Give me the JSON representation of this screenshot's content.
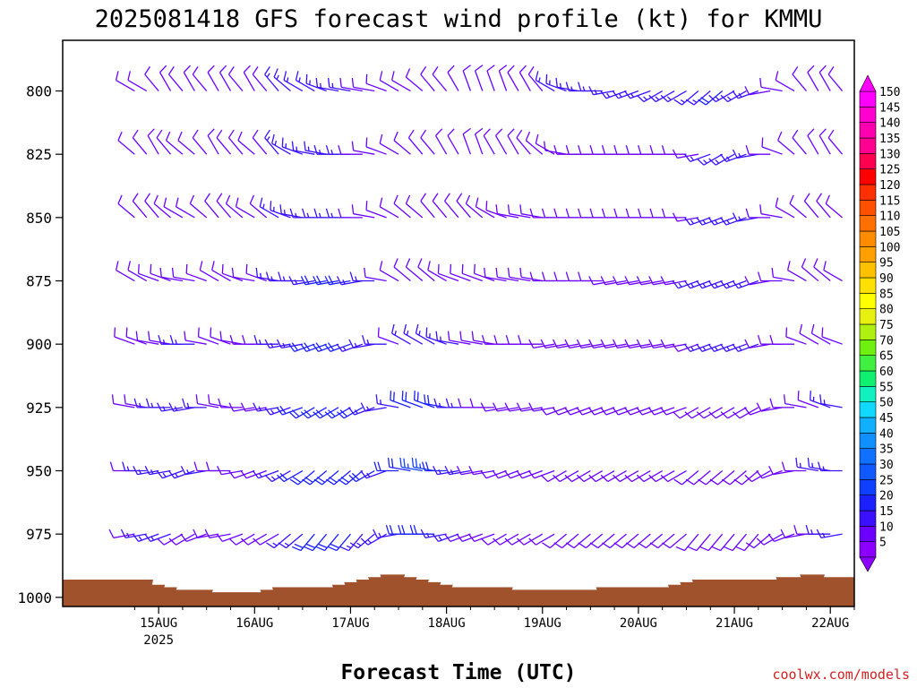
{
  "chart_data": {
    "type": "wind-barb-profile",
    "title": "2025081418 GFS forecast wind profile (kt) for KMMU",
    "xlabel": "Forecast Time (UTC)",
    "credit": "coolwx.com/models",
    "y_ticks": [
      800,
      825,
      850,
      875,
      900,
      925,
      950,
      975,
      1000
    ],
    "ylim": [
      1000,
      780
    ],
    "x_ticks": [
      {
        "label": "15AUG",
        "sub": "2025"
      },
      {
        "label": "16AUG",
        "sub": ""
      },
      {
        "label": "17AUG",
        "sub": ""
      },
      {
        "label": "18AUG",
        "sub": ""
      },
      {
        "label": "19AUG",
        "sub": ""
      },
      {
        "label": "20AUG",
        "sub": ""
      },
      {
        "label": "21AUG",
        "sub": ""
      },
      {
        "label": "22AUG",
        "sub": ""
      }
    ],
    "forecast_hours": [
      0,
      3,
      6,
      9,
      12,
      15,
      18,
      21,
      24,
      27,
      30,
      33,
      36,
      39,
      42,
      45,
      48,
      51,
      54,
      57,
      60,
      63,
      66,
      69,
      72,
      75,
      78,
      81,
      84,
      87,
      90,
      93,
      96,
      99,
      102,
      105,
      108,
      111,
      114,
      117,
      120,
      123,
      126,
      129,
      132,
      135,
      138,
      141,
      144,
      147,
      150,
      153,
      156,
      159,
      162,
      165,
      168,
      171,
      174,
      177,
      180
    ],
    "colorbar": {
      "values": [
        5,
        10,
        15,
        20,
        25,
        30,
        35,
        40,
        45,
        50,
        55,
        60,
        65,
        70,
        75,
        80,
        85,
        90,
        95,
        100,
        105,
        110,
        115,
        120,
        125,
        130,
        135,
        140,
        145,
        150
      ],
      "colors": [
        "#8b00ff",
        "#6b00ff",
        "#3a10ff",
        "#1a20ff",
        "#1040ff",
        "#1058ff",
        "#1070ff",
        "#1090ff",
        "#10b0ff",
        "#10d8ff",
        "#10f0c0",
        "#10f070",
        "#40f040",
        "#70f010",
        "#b0f010",
        "#e8f010",
        "#ffff00",
        "#ffe000",
        "#ffc000",
        "#ffa000",
        "#ff8c00",
        "#ff7000",
        "#ff5000",
        "#ff3000",
        "#ff0000",
        "#ff0050",
        "#ff0090",
        "#ff00b0",
        "#ff00d0",
        "#ff00ff"
      ]
    },
    "surface_pressure": [
      993,
      993,
      995,
      996,
      997,
      997,
      997,
      998,
      998,
      998,
      998,
      997,
      996,
      996,
      996,
      996,
      996,
      995,
      994,
      993,
      992,
      991,
      991,
      992,
      993,
      994,
      995,
      996,
      996,
      996,
      996,
      996,
      997,
      997,
      997,
      997,
      997,
      997,
      997,
      996,
      996,
      996,
      996,
      996,
      996,
      995,
      994,
      993,
      993,
      993,
      993,
      993,
      993,
      993,
      992,
      992,
      991,
      991,
      992,
      992,
      992
    ],
    "series": [
      {
        "level": 800,
        "dir": [
          300,
          300,
          320,
          330,
          320,
          330,
          320,
          330,
          330,
          320,
          330,
          320,
          320,
          310,
          300,
          300,
          290,
          280,
          280,
          280,
          280,
          290,
          300,
          300,
          310,
          320,
          320,
          330,
          340,
          340,
          340,
          340,
          330,
          330,
          320,
          300,
          290,
          280,
          270,
          270,
          260,
          250,
          250,
          250,
          240,
          240,
          240,
          230,
          230,
          230,
          240,
          240,
          250,
          260,
          280,
          300,
          320,
          330,
          330,
          320,
          310
        ],
        "spd": [
          10,
          10,
          10,
          10,
          10,
          10,
          10,
          10,
          10,
          10,
          10,
          10,
          15,
          15,
          15,
          15,
          15,
          15,
          15,
          10,
          10,
          10,
          10,
          10,
          10,
          10,
          10,
          10,
          10,
          10,
          10,
          10,
          10,
          10,
          10,
          15,
          15,
          15,
          15,
          15,
          15,
          15,
          15,
          15,
          15,
          15,
          15,
          15,
          15,
          20,
          15,
          15,
          15,
          10,
          10,
          10,
          10,
          10,
          10,
          10,
          10
        ]
      },
      {
        "level": 825,
        "dir": [
          310,
          320,
          330,
          320,
          310,
          310,
          320,
          330,
          320,
          320,
          310,
          320,
          320,
          300,
          290,
          280,
          280,
          270,
          270,
          270,
          280,
          290,
          300,
          310,
          320,
          320,
          330,
          330,
          340,
          340,
          330,
          330,
          330,
          320,
          310,
          300,
          280,
          270,
          270,
          270,
          270,
          270,
          270,
          270,
          270,
          270,
          270,
          260,
          250,
          240,
          240,
          250,
          260,
          270,
          290,
          310,
          320,
          330,
          330,
          320,
          310
        ],
        "spd": [
          10,
          10,
          10,
          10,
          10,
          10,
          10,
          10,
          10,
          10,
          10,
          10,
          15,
          15,
          15,
          15,
          15,
          15,
          15,
          10,
          10,
          10,
          10,
          10,
          10,
          10,
          10,
          10,
          10,
          10,
          10,
          10,
          10,
          10,
          10,
          10,
          10,
          10,
          10,
          10,
          10,
          10,
          10,
          10,
          10,
          10,
          10,
          10,
          15,
          15,
          15,
          15,
          15,
          10,
          10,
          10,
          10,
          10,
          10,
          10,
          10
        ]
      },
      {
        "level": 850,
        "dir": [
          310,
          320,
          320,
          310,
          300,
          300,
          310,
          320,
          320,
          310,
          300,
          310,
          300,
          290,
          280,
          270,
          270,
          270,
          270,
          270,
          280,
          290,
          300,
          310,
          310,
          320,
          320,
          320,
          320,
          310,
          300,
          290,
          280,
          280,
          280,
          270,
          270,
          270,
          270,
          270,
          270,
          270,
          270,
          270,
          270,
          270,
          270,
          260,
          250,
          250,
          250,
          250,
          260,
          270,
          280,
          300,
          310,
          320,
          320,
          310,
          300
        ],
        "spd": [
          10,
          10,
          10,
          10,
          10,
          10,
          10,
          10,
          10,
          10,
          10,
          10,
          15,
          15,
          15,
          15,
          15,
          15,
          15,
          10,
          10,
          10,
          10,
          10,
          10,
          10,
          10,
          10,
          10,
          10,
          10,
          10,
          10,
          10,
          10,
          10,
          10,
          10,
          10,
          10,
          10,
          10,
          10,
          10,
          10,
          10,
          10,
          10,
          15,
          15,
          15,
          15,
          15,
          10,
          10,
          10,
          10,
          10,
          10,
          10,
          10
        ]
      },
      {
        "level": 875,
        "dir": [
          300,
          300,
          290,
          290,
          280,
          280,
          290,
          300,
          300,
          290,
          280,
          290,
          280,
          270,
          270,
          260,
          260,
          260,
          260,
          260,
          270,
          280,
          300,
          310,
          310,
          310,
          300,
          290,
          290,
          290,
          290,
          280,
          280,
          280,
          280,
          270,
          270,
          270,
          270,
          270,
          260,
          260,
          260,
          260,
          260,
          260,
          260,
          250,
          250,
          250,
          250,
          250,
          250,
          260,
          270,
          280,
          300,
          310,
          310,
          300,
          290
        ],
        "spd": [
          10,
          10,
          10,
          10,
          10,
          10,
          10,
          10,
          10,
          10,
          10,
          10,
          15,
          15,
          15,
          15,
          20,
          20,
          20,
          15,
          15,
          10,
          10,
          10,
          10,
          10,
          10,
          10,
          10,
          10,
          10,
          10,
          10,
          10,
          10,
          10,
          10,
          10,
          10,
          10,
          10,
          10,
          10,
          10,
          10,
          10,
          10,
          15,
          15,
          15,
          15,
          15,
          15,
          10,
          10,
          10,
          10,
          10,
          10,
          10,
          10
        ]
      },
      {
        "level": 900,
        "dir": [
          290,
          290,
          280,
          280,
          270,
          270,
          280,
          290,
          290,
          280,
          270,
          270,
          270,
          260,
          260,
          250,
          250,
          250,
          250,
          250,
          260,
          270,
          290,
          300,
          300,
          300,
          290,
          280,
          280,
          280,
          280,
          270,
          270,
          270,
          270,
          260,
          260,
          260,
          260,
          260,
          260,
          260,
          260,
          260,
          260,
          260,
          260,
          250,
          250,
          250,
          250,
          250,
          250,
          260,
          270,
          270,
          290,
          300,
          300,
          290,
          280
        ],
        "spd": [
          10,
          10,
          10,
          10,
          15,
          15,
          10,
          10,
          10,
          10,
          10,
          10,
          15,
          15,
          15,
          20,
          20,
          20,
          20,
          15,
          15,
          15,
          10,
          15,
          15,
          15,
          15,
          15,
          10,
          10,
          10,
          10,
          10,
          10,
          10,
          10,
          10,
          10,
          10,
          10,
          10,
          10,
          10,
          10,
          10,
          10,
          10,
          10,
          15,
          15,
          15,
          15,
          15,
          10,
          10,
          10,
          10,
          10,
          10,
          10,
          10
        ]
      },
      {
        "level": 925,
        "dir": [
          280,
          280,
          270,
          270,
          260,
          260,
          270,
          280,
          280,
          270,
          260,
          260,
          260,
          250,
          250,
          240,
          240,
          240,
          240,
          240,
          250,
          260,
          280,
          290,
          290,
          290,
          280,
          270,
          270,
          270,
          270,
          260,
          260,
          260,
          260,
          260,
          250,
          250,
          250,
          250,
          250,
          250,
          250,
          250,
          250,
          250,
          250,
          240,
          240,
          240,
          240,
          240,
          240,
          250,
          260,
          270,
          280,
          290,
          290,
          280,
          270
        ],
        "spd": [
          10,
          10,
          15,
          15,
          15,
          15,
          15,
          10,
          10,
          10,
          10,
          10,
          15,
          15,
          20,
          20,
          20,
          20,
          20,
          20,
          15,
          15,
          15,
          20,
          20,
          20,
          20,
          15,
          15,
          10,
          10,
          10,
          10,
          10,
          10,
          10,
          10,
          10,
          10,
          10,
          10,
          10,
          10,
          10,
          10,
          10,
          10,
          10,
          10,
          10,
          10,
          10,
          10,
          10,
          10,
          10,
          10,
          10,
          15,
          15,
          10
        ]
      },
      {
        "level": 950,
        "dir": [
          270,
          270,
          260,
          260,
          250,
          250,
          260,
          270,
          270,
          260,
          250,
          250,
          250,
          240,
          240,
          230,
          230,
          230,
          230,
          230,
          240,
          250,
          270,
          280,
          280,
          280,
          270,
          260,
          260,
          260,
          260,
          250,
          250,
          250,
          250,
          250,
          240,
          240,
          240,
          240,
          240,
          240,
          240,
          240,
          240,
          240,
          240,
          230,
          230,
          230,
          230,
          230,
          230,
          240,
          250,
          260,
          270,
          280,
          280,
          270,
          260
        ],
        "spd": [
          10,
          15,
          15,
          15,
          15,
          15,
          15,
          10,
          10,
          10,
          10,
          10,
          15,
          15,
          20,
          20,
          20,
          20,
          20,
          20,
          20,
          15,
          20,
          20,
          25,
          25,
          20,
          15,
          15,
          10,
          10,
          10,
          10,
          10,
          10,
          10,
          10,
          10,
          10,
          10,
          10,
          10,
          10,
          10,
          10,
          10,
          10,
          10,
          10,
          10,
          10,
          10,
          10,
          10,
          10,
          10,
          10,
          15,
          15,
          15,
          15
        ]
      },
      {
        "level": 975,
        "dir": [
          260,
          260,
          250,
          250,
          240,
          240,
          250,
          260,
          260,
          250,
          240,
          240,
          240,
          230,
          230,
          220,
          220,
          220,
          220,
          220,
          230,
          240,
          260,
          270,
          270,
          270,
          260,
          250,
          250,
          250,
          250,
          240,
          240,
          240,
          240,
          240,
          230,
          230,
          230,
          230,
          230,
          230,
          230,
          230,
          230,
          230,
          230,
          220,
          220,
          220,
          220,
          220,
          220,
          230,
          240,
          250,
          260,
          270,
          270,
          260,
          250
        ],
        "spd": [
          10,
          15,
          15,
          15,
          10,
          10,
          10,
          10,
          10,
          10,
          10,
          10,
          10,
          15,
          15,
          20,
          20,
          20,
          20,
          15,
          15,
          15,
          15,
          20,
          20,
          20,
          15,
          15,
          10,
          10,
          10,
          10,
          10,
          10,
          10,
          10,
          10,
          10,
          10,
          10,
          10,
          10,
          10,
          10,
          10,
          10,
          10,
          10,
          10,
          10,
          10,
          10,
          10,
          10,
          10,
          10,
          10,
          10,
          15,
          15,
          15
        ]
      }
    ]
  }
}
